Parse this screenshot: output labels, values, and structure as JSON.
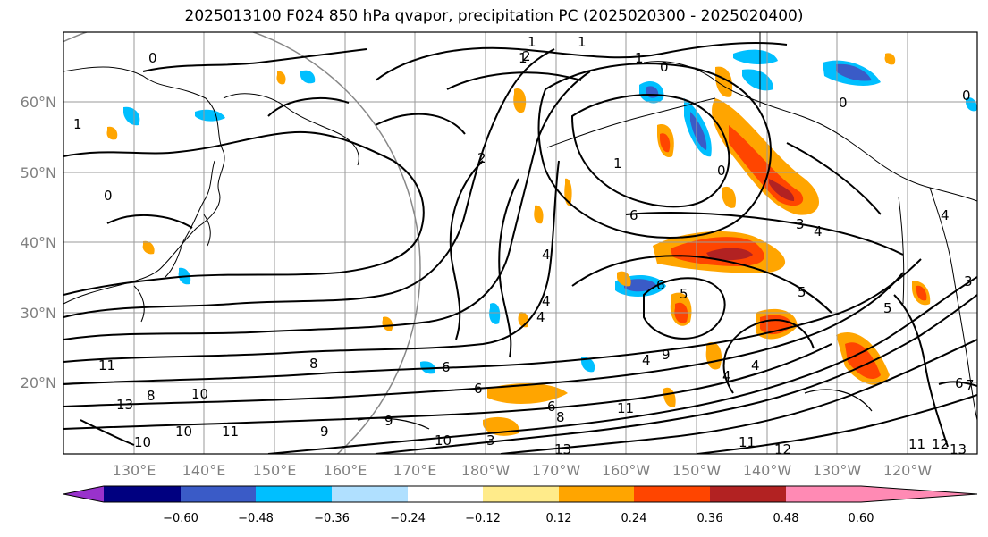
{
  "title": "2025013100 F024 850 hPa qvapor, precipitation PC (2025020300 - 2025020400)",
  "lat_labels": [
    "60°N",
    "50°N",
    "40°N",
    "30°N",
    "20°N"
  ],
  "lon_labels": [
    "130°E",
    "140°E",
    "150°E",
    "160°E",
    "170°E",
    "180°W",
    "170°W",
    "160°W",
    "150°W",
    "140°W",
    "130°W",
    "120°W"
  ],
  "colorbar": {
    "ticks": [
      "−0.60",
      "−0.48",
      "−0.36",
      "−0.24",
      "−0.12",
      "0.12",
      "0.24",
      "0.36",
      "0.48",
      "0.60"
    ],
    "colors": [
      "#9932CC",
      "#000080",
      "#3A5BC7",
      "#00BFFF",
      "#B0E0FF",
      "#FFFFFF",
      "#FFEB8A",
      "#FFA500",
      "#FF4500",
      "#B22222",
      "#FF8AB4"
    ]
  },
  "contour_labels": [
    "1",
    "0",
    "1",
    "2",
    "1",
    "0",
    "0",
    "1",
    "2",
    "3",
    "4",
    "4",
    "6",
    "4",
    "4",
    "4",
    "6",
    "9",
    "6",
    "5",
    "5",
    "8",
    "6",
    "9",
    "6",
    "8",
    "10",
    "11",
    "11",
    "13",
    "9",
    "10",
    "13",
    "8",
    "11",
    "11",
    "12",
    "11",
    "12",
    "13",
    "3",
    "0",
    "4",
    "4",
    "5",
    "6",
    "7",
    "10",
    "0",
    "0",
    "1",
    "1",
    "3",
    "4",
    "10"
  ]
}
